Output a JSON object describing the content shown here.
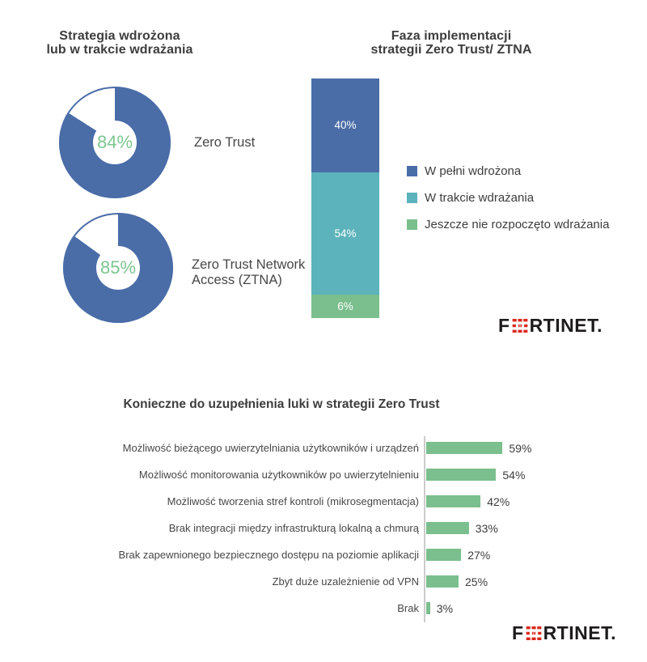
{
  "ui": {
    "donut_chart": {
      "title_line1": "Strategia wdrożona",
      "title_line2": "lub w trakcie wdrażania"
    },
    "stack_chart": {
      "title_line1": "Faza implementacji",
      "title_line2": "strategii Zero Trust/ ZTNA"
    },
    "gaps_chart": {
      "title": "Konieczne do uzupełnienia luki w strategii Zero Trust"
    }
  },
  "branding": {
    "logo_prefix": "F",
    "logo_suffix": "RTINET.",
    "logo_red": "#da291c",
    "logo_black": "#1e1b1c"
  },
  "chart_data": [
    {
      "type": "pie",
      "subtype": "donut",
      "title": "Strategia wdrożona lub w trakcie wdrażania",
      "donuts": [
        {
          "label": "Zero Trust",
          "value_pct": 84,
          "display": "84%"
        },
        {
          "label": "Zero Trust Network Access (ZTNA)",
          "value_pct": 85,
          "display": "85%"
        }
      ],
      "colors": {
        "filled": "#4a6da8",
        "remainder": "#ffffff",
        "value_text": "#7cc690"
      }
    },
    {
      "type": "bar",
      "subtype": "stacked-vertical-single-column",
      "title": "Faza implementacji strategii Zero Trust/ ZTNA",
      "segments": [
        {
          "label": "W pełni wdrożona",
          "value": 40,
          "display": "40%",
          "color": "#4a6da8"
        },
        {
          "label": "W trakcie wdrażania",
          "value": 54,
          "display": "54%",
          "color": "#5cb3bb"
        },
        {
          "label": "Jeszcze nie rozpoczęto wdrażania",
          "value": 6,
          "display": "6%",
          "color": "#7bbf8e"
        }
      ],
      "legend_position": "right",
      "total": 100
    },
    {
      "type": "bar",
      "subtype": "horizontal",
      "title": "Konieczne do uzupełnienia luki w strategii Zero Trust",
      "categories": [
        "Możliwość bieżącego uwierzytelniania użytkowników i urządzeń",
        "Możliwość monitorowania użytkowników po uwierzytelnieniu",
        "Możliwość tworzenia stref kontroli (mikrosegmentacja)",
        "Brak integracji między infrastrukturą lokalną a chmurą",
        "Brak zapewnionego bezpiecznego dostępu na poziomie aplikacji",
        "Zbyt duże uzależnienie od VPN",
        "Brak"
      ],
      "values": [
        59,
        54,
        42,
        33,
        27,
        25,
        3
      ],
      "value_labels": [
        "59%",
        "54%",
        "42%",
        "33%",
        "27%",
        "25%",
        "3%"
      ],
      "bar_color": "#7bbf8e",
      "xlim": [
        0,
        62
      ],
      "grid": false
    }
  ]
}
